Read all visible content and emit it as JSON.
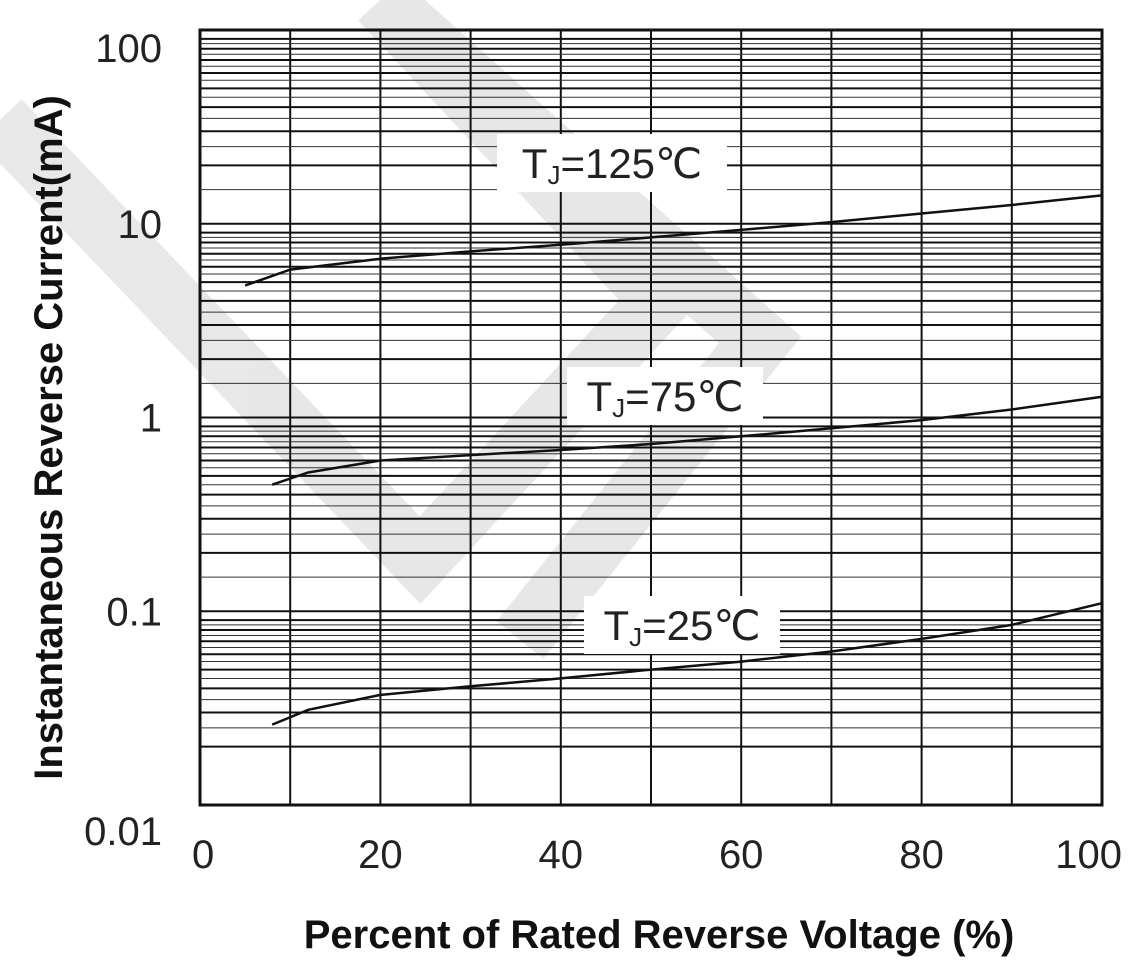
{
  "chart_data": {
    "type": "line",
    "title": "",
    "xlabel": "Percent of Rated Reverse Voltage (%)",
    "ylabel": "Instantaneous Reverse Current(mA)",
    "xscale": "linear",
    "yscale": "log",
    "xlim": [
      0,
      100
    ],
    "ylim": [
      0.01,
      100
    ],
    "grid": true,
    "x_ticks": [
      "0",
      "20",
      "40",
      "60",
      "80",
      "100"
    ],
    "y_ticks": [
      "100",
      "10",
      "1",
      "0.1",
      "0.01"
    ],
    "series": [
      {
        "label_main": "T",
        "label_sub": "J",
        "label_rest": "=125℃",
        "points": [
          [
            5,
            4.8
          ],
          [
            10,
            5.8
          ],
          [
            20,
            6.6
          ],
          [
            30,
            7.2
          ],
          [
            40,
            7.8
          ],
          [
            50,
            8.5
          ],
          [
            60,
            9.3
          ],
          [
            70,
            10.2
          ],
          [
            80,
            11.3
          ],
          [
            90,
            12.5
          ],
          [
            100,
            14
          ]
        ]
      },
      {
        "label_main": "T",
        "label_sub": "J",
        "label_rest": "=75℃",
        "points": [
          [
            8,
            0.45
          ],
          [
            12,
            0.52
          ],
          [
            20,
            0.6
          ],
          [
            30,
            0.64
          ],
          [
            40,
            0.68
          ],
          [
            50,
            0.73
          ],
          [
            60,
            0.8
          ],
          [
            70,
            0.88
          ],
          [
            80,
            0.97
          ],
          [
            90,
            1.1
          ],
          [
            100,
            1.28
          ]
        ]
      },
      {
        "label_main": "T",
        "label_sub": "J",
        "label_rest": "=25℃",
        "points": [
          [
            8,
            0.026
          ],
          [
            12,
            0.031
          ],
          [
            20,
            0.037
          ],
          [
            30,
            0.041
          ],
          [
            40,
            0.045
          ],
          [
            50,
            0.05
          ],
          [
            60,
            0.055
          ],
          [
            70,
            0.062
          ],
          [
            80,
            0.072
          ],
          [
            90,
            0.085
          ],
          [
            100,
            0.11
          ]
        ]
      }
    ]
  }
}
